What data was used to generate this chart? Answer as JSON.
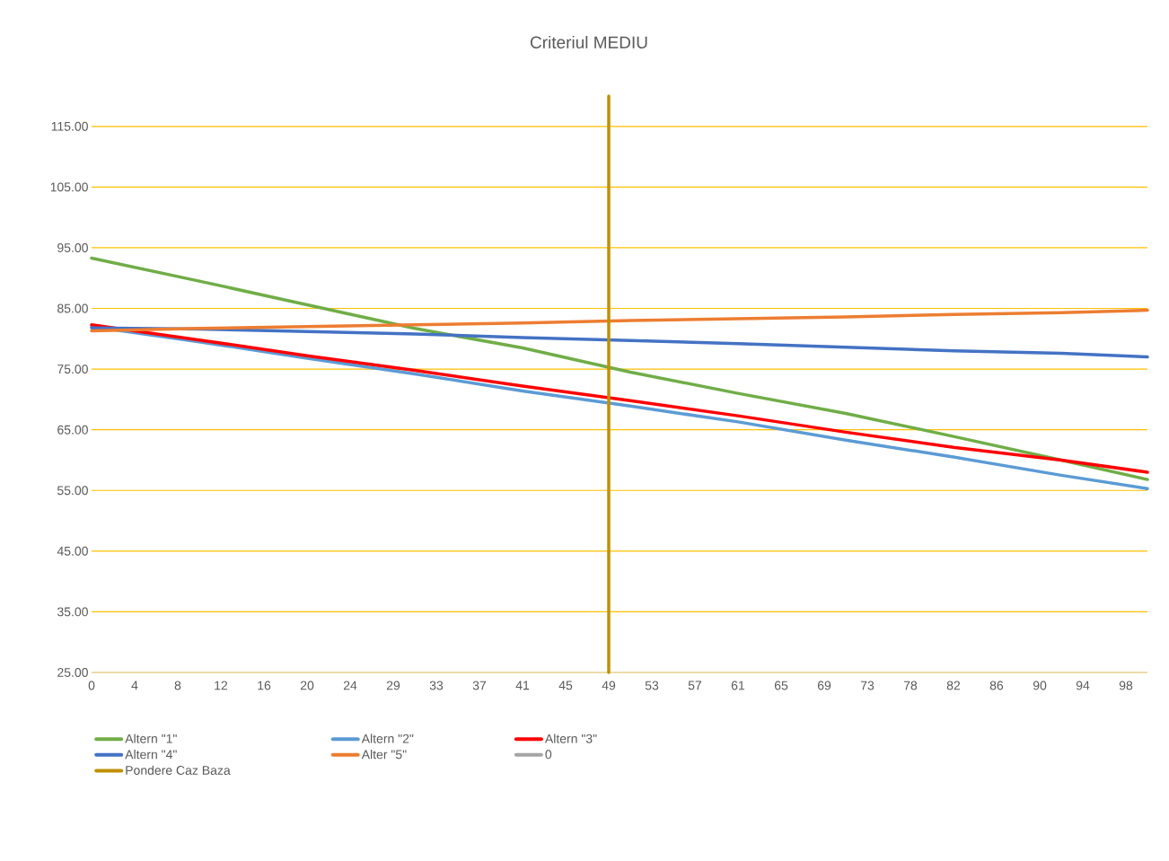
{
  "chart_data": {
    "type": "line",
    "title": "Criteriul MEDIU",
    "x": [
      0,
      10.2,
      20.41,
      30.61,
      40.82,
      51.02,
      61.22,
      71.43,
      81.63,
      91.84,
      100
    ],
    "series": [
      {
        "name": "Altern \"1\"",
        "color": "#70ad47",
        "values": [
          93.3,
          89.5,
          85.6,
          81.7,
          78.5,
          74.5,
          71.0,
          67.7,
          63.9,
          60.0,
          56.8
        ]
      },
      {
        "name": "Altern \"2\"",
        "color": "#5b9bd5",
        "values": [
          82.0,
          79.5,
          76.8,
          74.2,
          71.4,
          68.9,
          66.3,
          63.3,
          60.5,
          57.5,
          55.3
        ]
      },
      {
        "name": "Altern \"3\"",
        "color": "#ff0000",
        "values": [
          82.3,
          79.8,
          77.2,
          74.8,
          72.2,
          69.8,
          67.3,
          64.6,
          62.1,
          60.0,
          58.0
        ]
      },
      {
        "name": "Altern \"4\"",
        "color": "#4472c4",
        "values": [
          81.8,
          81.6,
          81.2,
          80.8,
          80.2,
          79.7,
          79.2,
          78.6,
          78.0,
          77.6,
          77.0
        ]
      },
      {
        "name": "Alter \"5\"",
        "color": "#ed7d31",
        "values": [
          81.3,
          81.7,
          82.0,
          82.3,
          82.6,
          83.0,
          83.3,
          83.6,
          84.0,
          84.3,
          84.7
        ]
      },
      {
        "name": "0",
        "color": "#a5a5a5",
        "values": [
          null,
          null,
          null,
          null,
          null,
          null,
          null,
          null,
          null,
          null,
          null
        ]
      },
      {
        "name": "Pondere Caz Baza",
        "color": "#bf9000",
        "x": [
          48.98,
          48.98
        ],
        "values": [
          25,
          120
        ]
      }
    ],
    "xlim": [
      0,
      100
    ],
    "xticks": [
      {
        "value": 0,
        "label": "0"
      },
      {
        "value": 4.08,
        "label": "4"
      },
      {
        "value": 8.16,
        "label": "8"
      },
      {
        "value": 12.24,
        "label": "12"
      },
      {
        "value": 16.33,
        "label": "16"
      },
      {
        "value": 20.41,
        "label": "20"
      },
      {
        "value": 24.49,
        "label": "24"
      },
      {
        "value": 28.57,
        "label": "29"
      },
      {
        "value": 32.65,
        "label": "33"
      },
      {
        "value": 36.73,
        "label": "37"
      },
      {
        "value": 40.82,
        "label": "41"
      },
      {
        "value": 44.9,
        "label": "45"
      },
      {
        "value": 48.98,
        "label": "49"
      },
      {
        "value": 53.06,
        "label": "53"
      },
      {
        "value": 57.14,
        "label": "57"
      },
      {
        "value": 61.22,
        "label": "61"
      },
      {
        "value": 65.31,
        "label": "65"
      },
      {
        "value": 69.39,
        "label": "69"
      },
      {
        "value": 73.47,
        "label": "73"
      },
      {
        "value": 77.55,
        "label": "78"
      },
      {
        "value": 81.63,
        "label": "82"
      },
      {
        "value": 85.71,
        "label": "86"
      },
      {
        "value": 89.8,
        "label": "90"
      },
      {
        "value": 93.88,
        "label": "94"
      },
      {
        "value": 97.96,
        "label": "98"
      }
    ],
    "ylim": [
      25,
      120
    ],
    "yticks": [
      {
        "value": 25,
        "label": "25.00"
      },
      {
        "value": 35,
        "label": "35.00"
      },
      {
        "value": 45,
        "label": "45.00"
      },
      {
        "value": 55,
        "label": "55.00"
      },
      {
        "value": 65,
        "label": "65.00"
      },
      {
        "value": 75,
        "label": "75.00"
      },
      {
        "value": 85,
        "label": "85.00"
      },
      {
        "value": 95,
        "label": "95.00"
      },
      {
        "value": 105,
        "label": "105.00"
      },
      {
        "value": 115,
        "label": "115.00"
      }
    ],
    "grid": "y",
    "legend": "bottom",
    "marker": "none",
    "line_style": "solid"
  }
}
